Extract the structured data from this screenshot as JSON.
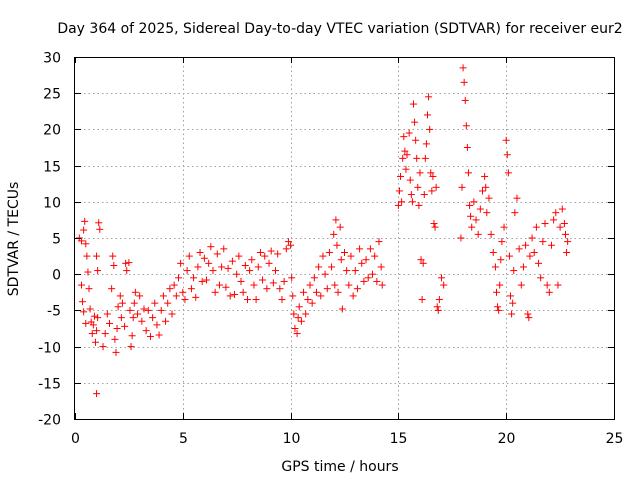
{
  "chart_data": {
    "type": "scatter",
    "title": "Day 364 of 2025, Sidereal Day-to-day VTEC variation (SDTVAR) for receiver eur2",
    "xlabel": "GPS time / hours",
    "ylabel": "SDTVAR / TECUs",
    "xlim": [
      0,
      25
    ],
    "ylim": [
      -20,
      30
    ],
    "xticks": [
      0,
      5,
      10,
      15,
      20,
      25
    ],
    "yticks": [
      -20,
      -15,
      -10,
      -5,
      0,
      5,
      10,
      15,
      20,
      25,
      30
    ],
    "grid": true,
    "marker": "+",
    "color": "#ff0000",
    "series": [
      {
        "name": "eur2",
        "points": [
          [
            0.2,
            5.0
          ],
          [
            0.3,
            4.6
          ],
          [
            0.4,
            6.1
          ],
          [
            0.45,
            7.3
          ],
          [
            0.5,
            4.2
          ],
          [
            0.55,
            2.5
          ],
          [
            0.6,
            0.3
          ],
          [
            0.65,
            -2.0
          ],
          [
            0.7,
            -4.8
          ],
          [
            0.75,
            -6.6
          ],
          [
            0.8,
            -8.2
          ],
          [
            0.85,
            -7.0
          ],
          [
            0.9,
            -5.8
          ],
          [
            0.95,
            -9.4
          ],
          [
            1.0,
            -7.8
          ],
          [
            1.05,
            -6.0
          ],
          [
            0.3,
            -1.5
          ],
          [
            0.35,
            -3.8
          ],
          [
            0.4,
            -5.2
          ],
          [
            0.5,
            -6.8
          ],
          [
            1.0,
            2.5
          ],
          [
            1.05,
            0.5
          ],
          [
            1.1,
            7.1
          ],
          [
            1.15,
            6.2
          ],
          [
            1.0,
            -16.5
          ],
          [
            1.3,
            -10.0
          ],
          [
            1.4,
            -8.2
          ],
          [
            1.5,
            -5.5
          ],
          [
            1.6,
            -6.8
          ],
          [
            1.7,
            -2.0
          ],
          [
            1.75,
            2.5
          ],
          [
            1.8,
            1.2
          ],
          [
            1.85,
            -9.0
          ],
          [
            1.9,
            -10.8
          ],
          [
            1.95,
            -7.5
          ],
          [
            2.0,
            -4.5
          ],
          [
            2.1,
            -3.0
          ],
          [
            2.15,
            -6.0
          ],
          [
            2.2,
            -4.0
          ],
          [
            2.3,
            -7.2
          ],
          [
            2.35,
            1.5
          ],
          [
            2.4,
            0.5
          ],
          [
            2.5,
            1.6
          ],
          [
            2.55,
            -5.0
          ],
          [
            2.6,
            -10.0
          ],
          [
            2.65,
            -8.5
          ],
          [
            2.7,
            -6.0
          ],
          [
            2.75,
            -4.0
          ],
          [
            2.8,
            -2.5
          ],
          [
            2.9,
            -5.5
          ],
          [
            3.0,
            -3.0
          ],
          [
            3.1,
            -6.5
          ],
          [
            3.2,
            -4.8
          ],
          [
            3.3,
            -7.8
          ],
          [
            3.4,
            -5.0
          ],
          [
            3.5,
            -8.6
          ],
          [
            3.6,
            -6.0
          ],
          [
            3.7,
            -4.0
          ],
          [
            3.8,
            -7.0
          ],
          [
            3.9,
            -8.4
          ],
          [
            4.0,
            -5.0
          ],
          [
            4.1,
            -3.0
          ],
          [
            4.2,
            -6.5
          ],
          [
            4.3,
            -4.0
          ],
          [
            4.4,
            -2.0
          ],
          [
            4.5,
            -5.5
          ],
          [
            4.6,
            -1.5
          ],
          [
            4.7,
            -3.0
          ],
          [
            4.8,
            -0.5
          ],
          [
            4.9,
            1.5
          ],
          [
            5.0,
            -2.5
          ],
          [
            5.1,
            -3.5
          ],
          [
            5.2,
            0.5
          ],
          [
            5.3,
            2.5
          ],
          [
            5.4,
            -2.0
          ],
          [
            5.5,
            -0.5
          ],
          [
            5.6,
            -3.2
          ],
          [
            5.7,
            1.0
          ],
          [
            5.8,
            3.0
          ],
          [
            5.9,
            -1.0
          ],
          [
            6.0,
            2.2
          ],
          [
            6.1,
            -0.8
          ],
          [
            6.2,
            1.5
          ],
          [
            6.3,
            3.8
          ],
          [
            6.4,
            0.5
          ],
          [
            6.5,
            -2.5
          ],
          [
            6.6,
            2.8
          ],
          [
            6.7,
            -1.5
          ],
          [
            6.8,
            1.0
          ],
          [
            6.9,
            3.5
          ],
          [
            7.0,
            -1.8
          ],
          [
            7.1,
            0.8
          ],
          [
            7.2,
            -3.0
          ],
          [
            7.3,
            1.8
          ],
          [
            7.4,
            -2.8
          ],
          [
            7.5,
            0.0
          ],
          [
            7.6,
            2.5
          ],
          [
            7.7,
            -1.0
          ],
          [
            7.8,
            -2.5
          ],
          [
            7.9,
            1.2
          ],
          [
            8.0,
            -3.5
          ],
          [
            8.1,
            0.5
          ],
          [
            8.2,
            2.0
          ],
          [
            8.3,
            -1.5
          ],
          [
            8.4,
            -3.5
          ],
          [
            8.5,
            1.0
          ],
          [
            8.6,
            3.0
          ],
          [
            8.7,
            -0.8
          ],
          [
            8.8,
            2.5
          ],
          [
            8.9,
            -2.0
          ],
          [
            9.0,
            1.5
          ],
          [
            9.1,
            3.2
          ],
          [
            9.2,
            -1.2
          ],
          [
            9.3,
            0.5
          ],
          [
            9.4,
            2.8
          ],
          [
            9.5,
            -2.0
          ],
          [
            9.6,
            -3.5
          ],
          [
            9.7,
            -1.0
          ],
          [
            9.8,
            3.5
          ],
          [
            9.9,
            4.5
          ],
          [
            10.0,
            4.0
          ],
          [
            10.05,
            -0.5
          ],
          [
            10.1,
            -3.0
          ],
          [
            10.15,
            -5.5
          ],
          [
            10.2,
            -7.5
          ],
          [
            10.3,
            -8.2
          ],
          [
            10.35,
            -6.0
          ],
          [
            10.4,
            -4.5
          ],
          [
            10.5,
            -6.5
          ],
          [
            10.6,
            -2.5
          ],
          [
            10.7,
            -5.5
          ],
          [
            10.8,
            -3.5
          ],
          [
            10.9,
            -1.5
          ],
          [
            11.0,
            -4.0
          ],
          [
            11.1,
            -0.5
          ],
          [
            11.2,
            -2.5
          ],
          [
            11.3,
            1.0
          ],
          [
            11.4,
            -3.0
          ],
          [
            11.5,
            2.5
          ],
          [
            11.6,
            0.0
          ],
          [
            11.7,
            -2.0
          ],
          [
            11.8,
            3.0
          ],
          [
            11.9,
            1.0
          ],
          [
            12.0,
            5.5
          ],
          [
            12.05,
            -1.5
          ],
          [
            12.1,
            7.5
          ],
          [
            12.15,
            4.0
          ],
          [
            12.2,
            -2.5
          ],
          [
            12.3,
            6.5
          ],
          [
            12.35,
            2.0
          ],
          [
            12.4,
            -4.8
          ],
          [
            12.5,
            3.0
          ],
          [
            12.6,
            0.5
          ],
          [
            12.7,
            -1.5
          ],
          [
            12.8,
            2.5
          ],
          [
            12.9,
            -3.0
          ],
          [
            13.0,
            0.5
          ],
          [
            13.1,
            -2.0
          ],
          [
            13.2,
            3.5
          ],
          [
            13.3,
            1.5
          ],
          [
            13.4,
            -1.0
          ],
          [
            13.5,
            2.0
          ],
          [
            13.6,
            -0.5
          ],
          [
            13.7,
            3.5
          ],
          [
            13.8,
            0.0
          ],
          [
            13.9,
            2.5
          ],
          [
            14.0,
            -1.0
          ],
          [
            14.1,
            4.5
          ],
          [
            14.2,
            1.0
          ],
          [
            14.25,
            -1.5
          ],
          [
            15.0,
            9.5
          ],
          [
            15.05,
            11.5
          ],
          [
            15.1,
            13.5
          ],
          [
            15.15,
            10.0
          ],
          [
            15.2,
            16.0
          ],
          [
            15.25,
            19.0
          ],
          [
            15.3,
            17.0
          ],
          [
            15.35,
            14.5
          ],
          [
            15.4,
            16.5
          ],
          [
            15.5,
            19.5
          ],
          [
            15.55,
            13.0
          ],
          [
            15.6,
            11.0
          ],
          [
            15.65,
            10.0
          ],
          [
            15.7,
            23.5
          ],
          [
            15.75,
            21.0
          ],
          [
            15.8,
            18.5
          ],
          [
            15.85,
            16.0
          ],
          [
            15.9,
            12.0
          ],
          [
            15.95,
            9.5
          ],
          [
            16.0,
            14.0
          ],
          [
            16.05,
            2.0
          ],
          [
            16.1,
            -3.5
          ],
          [
            16.15,
            1.5
          ],
          [
            16.2,
            11.0
          ],
          [
            16.25,
            16.0
          ],
          [
            16.3,
            18.0
          ],
          [
            16.35,
            22.0
          ],
          [
            16.4,
            24.5
          ],
          [
            16.45,
            20.0
          ],
          [
            16.5,
            14.0
          ],
          [
            16.55,
            11.5
          ],
          [
            16.6,
            13.5
          ],
          [
            16.65,
            7.0
          ],
          [
            16.7,
            6.5
          ],
          [
            16.75,
            12.0
          ],
          [
            16.8,
            -4.5
          ],
          [
            16.85,
            -5.0
          ],
          [
            16.9,
            -3.5
          ],
          [
            17.0,
            -0.5
          ],
          [
            17.1,
            -1.5
          ],
          [
            17.9,
            5.0
          ],
          [
            17.95,
            12.0
          ],
          [
            18.0,
            28.5
          ],
          [
            18.05,
            26.5
          ],
          [
            18.1,
            24.0
          ],
          [
            18.15,
            20.5
          ],
          [
            18.2,
            17.5
          ],
          [
            18.25,
            14.0
          ],
          [
            18.3,
            9.5
          ],
          [
            18.35,
            8.0
          ],
          [
            18.4,
            6.5
          ],
          [
            18.5,
            10.0
          ],
          [
            18.6,
            7.5
          ],
          [
            18.7,
            5.5
          ],
          [
            18.8,
            9.0
          ],
          [
            18.9,
            11.5
          ],
          [
            19.0,
            13.5
          ],
          [
            19.05,
            12.0
          ],
          [
            19.1,
            8.5
          ],
          [
            19.2,
            10.5
          ],
          [
            19.3,
            5.5
          ],
          [
            19.4,
            3.0
          ],
          [
            19.5,
            1.0
          ],
          [
            19.55,
            -2.5
          ],
          [
            19.6,
            -4.5
          ],
          [
            19.65,
            -5.0
          ],
          [
            19.7,
            -1.5
          ],
          [
            19.75,
            2.0
          ],
          [
            19.8,
            4.5
          ],
          [
            19.9,
            6.5
          ],
          [
            20.0,
            18.5
          ],
          [
            20.05,
            16.5
          ],
          [
            20.1,
            14.0
          ],
          [
            20.15,
            2.5
          ],
          [
            20.2,
            -3.0
          ],
          [
            20.25,
            -5.5
          ],
          [
            20.3,
            -4.0
          ],
          [
            20.35,
            0.5
          ],
          [
            20.4,
            8.5
          ],
          [
            20.5,
            10.5
          ],
          [
            20.6,
            3.5
          ],
          [
            20.7,
            -1.5
          ],
          [
            20.8,
            1.0
          ],
          [
            20.9,
            4.0
          ],
          [
            21.0,
            -5.5
          ],
          [
            21.05,
            -6.0
          ],
          [
            21.1,
            2.5
          ],
          [
            21.2,
            5.0
          ],
          [
            21.3,
            3.0
          ],
          [
            21.4,
            6.5
          ],
          [
            21.5,
            1.5
          ],
          [
            21.6,
            -0.5
          ],
          [
            21.7,
            4.5
          ],
          [
            21.8,
            7.0
          ],
          [
            21.9,
            -1.5
          ],
          [
            22.0,
            -2.5
          ],
          [
            22.1,
            4.0
          ],
          [
            22.2,
            7.5
          ],
          [
            22.3,
            8.5
          ],
          [
            22.4,
            -1.5
          ],
          [
            22.5,
            6.5
          ],
          [
            22.6,
            9.0
          ],
          [
            22.7,
            7.0
          ],
          [
            22.75,
            5.5
          ],
          [
            22.8,
            3.0
          ],
          [
            22.85,
            4.5
          ]
        ]
      }
    ]
  }
}
